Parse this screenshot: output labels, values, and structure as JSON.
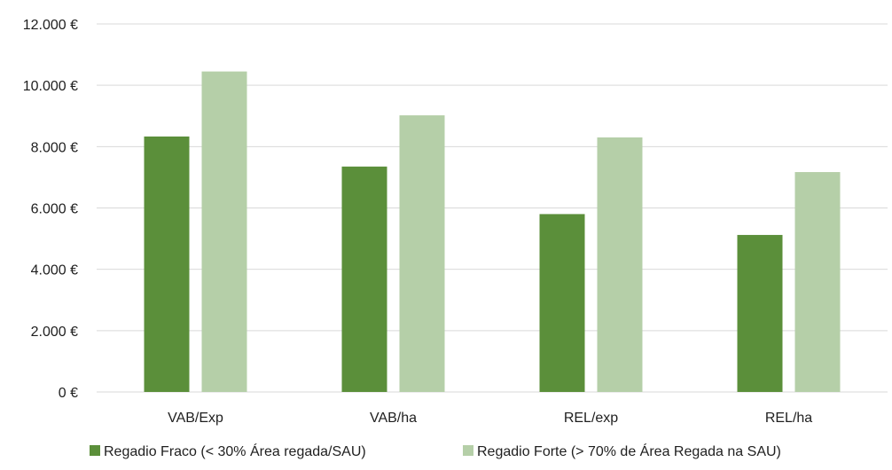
{
  "chart_data": {
    "type": "bar",
    "categories": [
      "VAB/Exp",
      "VAB/ha",
      "REL/exp",
      "REL/ha"
    ],
    "series": [
      {
        "name": "Regadio Fraco (< 30% Área regada/SAU)",
        "color": "#5b8f3a",
        "values": [
          8330,
          7350,
          5800,
          5120
        ]
      },
      {
        "name": "Regadio Forte (> 70% de Área Regada na SAU)",
        "color": "#b5cfa8",
        "values": [
          10450,
          9020,
          8300,
          7170
        ]
      }
    ],
    "yticks": [
      {
        "value": 0,
        "label": "0 €"
      },
      {
        "value": 2000,
        "label": "2.000 €"
      },
      {
        "value": 4000,
        "label": "4.000 €"
      },
      {
        "value": 6000,
        "label": "6.000 €"
      },
      {
        "value": 8000,
        "label": "8.000 €"
      },
      {
        "value": 10000,
        "label": "10.000 €"
      },
      {
        "value": 12000,
        "label": "12.000 €"
      }
    ],
    "ylim": [
      0,
      12000
    ],
    "grid": true,
    "legend_position": "bottom"
  }
}
